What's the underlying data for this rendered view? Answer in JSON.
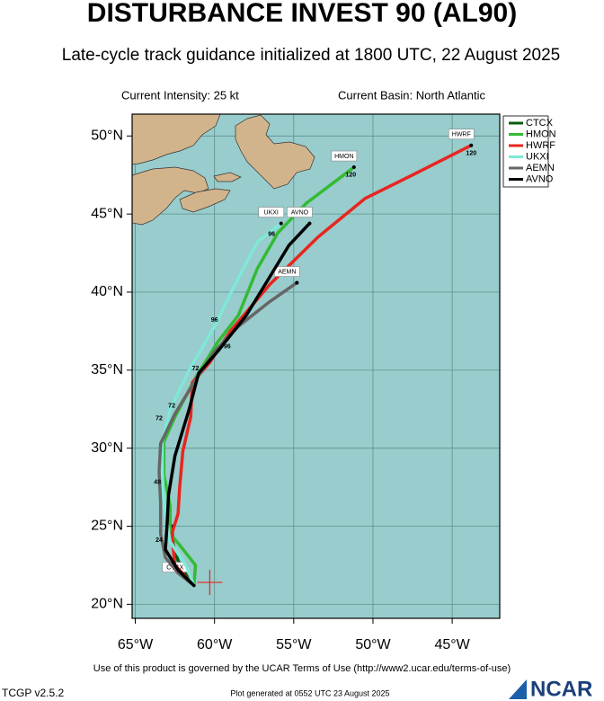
{
  "chart_data": {
    "type": "line",
    "title": "DISTURBANCE INVEST 90 (AL90)",
    "subtitle": "Late-cycle track guidance initialized at 1800 UTC, 22 August 2025",
    "intensity": "Current Intensity: 25 kt",
    "basin": "Current Basin: North Atlantic",
    "footer": "Use of this product is governed by the UCAR Terms of Use (http://www2.ucar.edu/terms-of-use)",
    "version": "TCGP v2.5.2",
    "generated": "Plot generated at 0552 UTC   23 August 2025",
    "logo": "NCAR",
    "xlim": [
      -65.2,
      -42
    ],
    "ylim": [
      19.1,
      51.4
    ],
    "xticks": [
      {
        "value": -65,
        "label": "65°W"
      },
      {
        "value": -60,
        "label": "60°W"
      },
      {
        "value": -55,
        "label": "55°W"
      },
      {
        "value": -50,
        "label": "50°W"
      },
      {
        "value": -45,
        "label": "45°W"
      }
    ],
    "yticks": [
      {
        "value": 20,
        "label": "20°N"
      },
      {
        "value": 25,
        "label": "25°N"
      },
      {
        "value": 30,
        "label": "30°N"
      },
      {
        "value": 35,
        "label": "35°N"
      },
      {
        "value": 40,
        "label": "40°N"
      },
      {
        "value": 45,
        "label": "45°N"
      },
      {
        "value": 50,
        "label": "50°N"
      }
    ],
    "grid": true,
    "legend": "top-right",
    "current_position": {
      "x": -60.3,
      "y": 21.4
    },
    "series": [
      {
        "name": "CTCX",
        "color": "#0a5c0a",
        "x": [
          -61.3,
          -61.8,
          -62.3,
          -62.6,
          -62.7
        ],
        "y": [
          21.2,
          21.9,
          22.8,
          23.8,
          25.0
        ]
      },
      {
        "name": "HMON",
        "color": "#33bb33",
        "x": [
          -61.3,
          -61.2,
          -62.2,
          -62.8,
          -62.8,
          -63.2,
          -63.2,
          -62.5,
          -61.2,
          -59.8,
          -58.5,
          -57.3,
          -56.0,
          -54.2,
          -51.2
        ],
        "y": [
          21.2,
          22.5,
          23.8,
          24.5,
          26.3,
          28.3,
          30.4,
          32.0,
          34.5,
          36.8,
          38.5,
          41.5,
          43.8,
          45.7,
          48.0
        ]
      },
      {
        "name": "HWRF",
        "color": "#e8251e",
        "x": [
          -61.3,
          -62.5,
          -62.7,
          -62.3,
          -62.2,
          -62.0,
          -61.5,
          -61.4,
          -60.3,
          -59.0,
          -56.5,
          -53.5,
          -50.5,
          -47.5,
          -43.8
        ],
        "y": [
          21.2,
          22.5,
          24.5,
          25.8,
          27.5,
          29.8,
          32.0,
          34.2,
          35.5,
          37.5,
          40.5,
          43.5,
          46.0,
          47.5,
          49.4
        ]
      },
      {
        "name": "UKXI",
        "color": "#7fe8d8",
        "x": [
          -61.3,
          -61.8,
          -62.8,
          -63.2,
          -63.3,
          -63.3,
          -62.8,
          -61.6,
          -60.0,
          -58.7,
          -57.3,
          -55.8
        ],
        "y": [
          21.2,
          22.5,
          24.0,
          26.5,
          28.5,
          30.4,
          32.5,
          35.0,
          37.8,
          40.5,
          43.2,
          44.4
        ]
      },
      {
        "name": "AEMN",
        "color": "#666666",
        "x": [
          -61.3,
          -62.3,
          -63.1,
          -63.4,
          -63.4,
          -63.5,
          -63.4,
          -62.5,
          -61.3,
          -60.0,
          -58.5,
          -56.5,
          -54.8
        ],
        "y": [
          21.2,
          22.0,
          23.0,
          24.5,
          26.5,
          28.5,
          30.3,
          32.2,
          34.2,
          36.2,
          37.8,
          39.4,
          40.6
        ]
      },
      {
        "name": "AVNO",
        "color": "#000000",
        "x": [
          -61.3,
          -62.3,
          -63.1,
          -63.0,
          -62.9,
          -62.5,
          -61.6,
          -61.0,
          -59.8,
          -58.0,
          -56.5,
          -55.3,
          -54.0
        ],
        "y": [
          21.2,
          22.2,
          23.5,
          25.0,
          27.0,
          29.5,
          32.5,
          34.8,
          36.2,
          38.5,
          41.0,
          43.0,
          44.4
        ]
      }
    ],
    "annotations": [
      {
        "text": "120",
        "x": -43.8,
        "y": 48.9
      },
      {
        "text": "120",
        "x": -51.4,
        "y": 47.5
      },
      {
        "text": "96",
        "x": -56.4,
        "y": 43.7
      },
      {
        "text": "96",
        "x": -60.0,
        "y": 38.2
      },
      {
        "text": "96",
        "x": -59.2,
        "y": 36.5
      },
      {
        "text": "72",
        "x": -61.2,
        "y": 35.1
      },
      {
        "text": "72",
        "x": -62.7,
        "y": 32.7
      },
      {
        "text": "72",
        "x": -63.5,
        "y": 31.9
      },
      {
        "text": "48",
        "x": -63.6,
        "y": 27.8
      },
      {
        "text": "24",
        "x": -63.5,
        "y": 24.1
      }
    ]
  }
}
